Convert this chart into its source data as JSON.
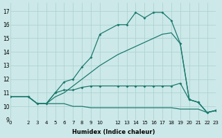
{
  "bg_color": "#cce8e8",
  "grid_color": "#aacfcf",
  "line_color": "#1a7a6e",
  "xlabel": "Humidex (Indice chaleur)",
  "xlim": [
    0,
    23
  ],
  "ylim": [
    9,
    17.6
  ],
  "xticks": [
    0,
    2,
    3,
    4,
    5,
    6,
    7,
    8,
    9,
    10,
    12,
    13,
    14,
    15,
    16,
    17,
    18,
    19,
    20,
    21,
    22,
    23
  ],
  "yticks": [
    9,
    10,
    11,
    12,
    13,
    14,
    15,
    16,
    17
  ],
  "line1_x": [
    0,
    2,
    3,
    4,
    5,
    6,
    7,
    8,
    9,
    10,
    12,
    13,
    14,
    15,
    16,
    17,
    18,
    19,
    20,
    21,
    22,
    23
  ],
  "line1_y": [
    10.7,
    10.7,
    10.2,
    10.2,
    11.0,
    11.8,
    12.0,
    12.9,
    13.6,
    15.3,
    16.0,
    16.0,
    16.9,
    16.5,
    16.9,
    16.9,
    16.3,
    14.6,
    10.5,
    10.3,
    9.55,
    9.7
  ],
  "line2_x": [
    0,
    2,
    3,
    4,
    5,
    6,
    7,
    8,
    9,
    10,
    12,
    13,
    14,
    15,
    16,
    17,
    18,
    19,
    20,
    21,
    22,
    23
  ],
  "line2_y": [
    10.7,
    10.7,
    10.2,
    10.2,
    10.7,
    11.0,
    11.5,
    12.0,
    12.5,
    13.0,
    13.8,
    14.1,
    14.4,
    14.7,
    15.0,
    15.3,
    15.4,
    14.6,
    10.5,
    10.3,
    9.55,
    9.7
  ],
  "line3_x": [
    0,
    2,
    3,
    4,
    5,
    6,
    7,
    8,
    9,
    10,
    12,
    13,
    14,
    15,
    16,
    17,
    18,
    19,
    20,
    21,
    22,
    23
  ],
  "line3_y": [
    10.7,
    10.7,
    10.2,
    10.2,
    11.0,
    11.2,
    11.2,
    11.4,
    11.5,
    11.5,
    11.5,
    11.5,
    11.5,
    11.5,
    11.5,
    11.5,
    11.5,
    11.7,
    10.5,
    10.3,
    9.55,
    9.7
  ],
  "line4_x": [
    0,
    2,
    3,
    4,
    5,
    6,
    7,
    8,
    9,
    10,
    12,
    13,
    14,
    15,
    16,
    17,
    18,
    19,
    20,
    21,
    22,
    23
  ],
  "line4_y": [
    10.7,
    10.7,
    10.2,
    10.2,
    10.2,
    10.2,
    10.0,
    10.0,
    9.9,
    9.9,
    9.9,
    9.9,
    9.9,
    9.9,
    9.9,
    9.9,
    9.9,
    9.8,
    9.8,
    9.8,
    9.55,
    9.7
  ]
}
